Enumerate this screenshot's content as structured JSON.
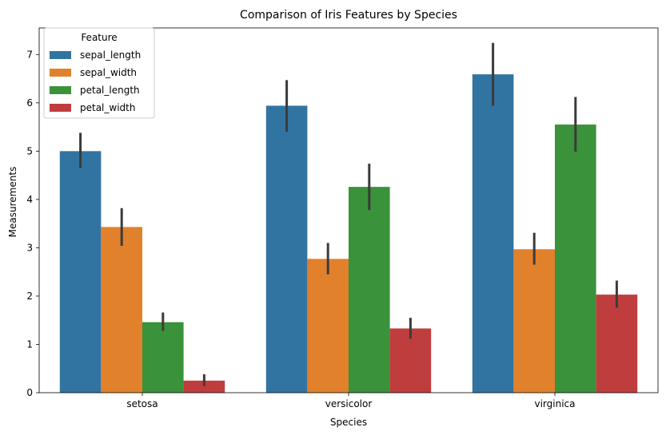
{
  "chart_data": {
    "type": "bar",
    "title": "Comparison of Iris Features by Species",
    "xlabel": "Species",
    "ylabel": "Measurements",
    "categories": [
      "setosa",
      "versicolor",
      "virginica"
    ],
    "ylim": [
      0,
      7.55
    ],
    "yticks": [
      0,
      1,
      2,
      3,
      4,
      5,
      6,
      7
    ],
    "legend": {
      "title": "Feature",
      "position": "top-left"
    },
    "grid": false,
    "series": [
      {
        "name": "sepal_length",
        "color": "#3274a1",
        "values": [
          5.0,
          5.94,
          6.59
        ],
        "err_low": [
          4.65,
          5.4,
          5.94
        ],
        "err_high": [
          5.38,
          6.47,
          7.24
        ]
      },
      {
        "name": "sepal_width",
        "color": "#e1812c",
        "values": [
          3.43,
          2.77,
          2.97
        ],
        "err_low": [
          3.04,
          2.45,
          2.65
        ],
        "err_high": [
          3.82,
          3.1,
          3.31
        ]
      },
      {
        "name": "petal_length",
        "color": "#3a923a",
        "values": [
          1.46,
          4.26,
          5.55
        ],
        "err_low": [
          1.28,
          3.78,
          4.99
        ],
        "err_high": [
          1.66,
          4.74,
          6.12
        ]
      },
      {
        "name": "petal_width",
        "color": "#c03d3e",
        "values": [
          0.25,
          1.33,
          2.03
        ],
        "err_low": [
          0.14,
          1.12,
          1.76
        ],
        "err_high": [
          0.38,
          1.55,
          2.32
        ]
      }
    ],
    "errorbar_color": "#3b3b3b"
  }
}
